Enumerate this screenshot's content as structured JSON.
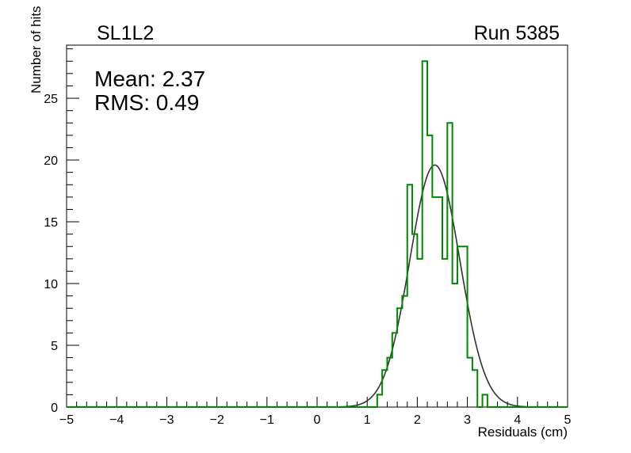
{
  "chart_data": {
    "type": "histogram",
    "title_left": "SL1L2",
    "title_right": "Run 5385",
    "stats": {
      "mean_text": "Mean: 2.37",
      "rms_text": "RMS:  0.49"
    },
    "xlabel": "Residuals (cm)",
    "ylabel": "Number of hits",
    "xlim": [
      -5,
      5
    ],
    "ylim": [
      0,
      29.3
    ],
    "xticks": [
      "−5",
      "−4",
      "−3",
      "−2",
      "−1",
      "0",
      "1",
      "2",
      "3",
      "4",
      "5"
    ],
    "yticks": [
      "0",
      "5",
      "10",
      "15",
      "20",
      "25"
    ],
    "bin_width": 0.1,
    "histogram": {
      "color": "#008800",
      "bin_edges": [
        1.2,
        1.3,
        1.4,
        1.5,
        1.6,
        1.7,
        1.8,
        1.9,
        2.0,
        2.1,
        2.2,
        2.3,
        2.4,
        2.5,
        2.6,
        2.7,
        2.8,
        2.9,
        3.0,
        3.1,
        3.2,
        3.3,
        3.4,
        3.5
      ],
      "counts": [
        1,
        3,
        4,
        6,
        8,
        9,
        18,
        14,
        12,
        28,
        22,
        17,
        17,
        12,
        23,
        10,
        13,
        13,
        4,
        3,
        0,
        1,
        0
      ]
    },
    "fit": {
      "type": "gaussian",
      "color": "#333333",
      "constant": 19.6,
      "mean": 2.35,
      "sigma": 0.5
    }
  }
}
